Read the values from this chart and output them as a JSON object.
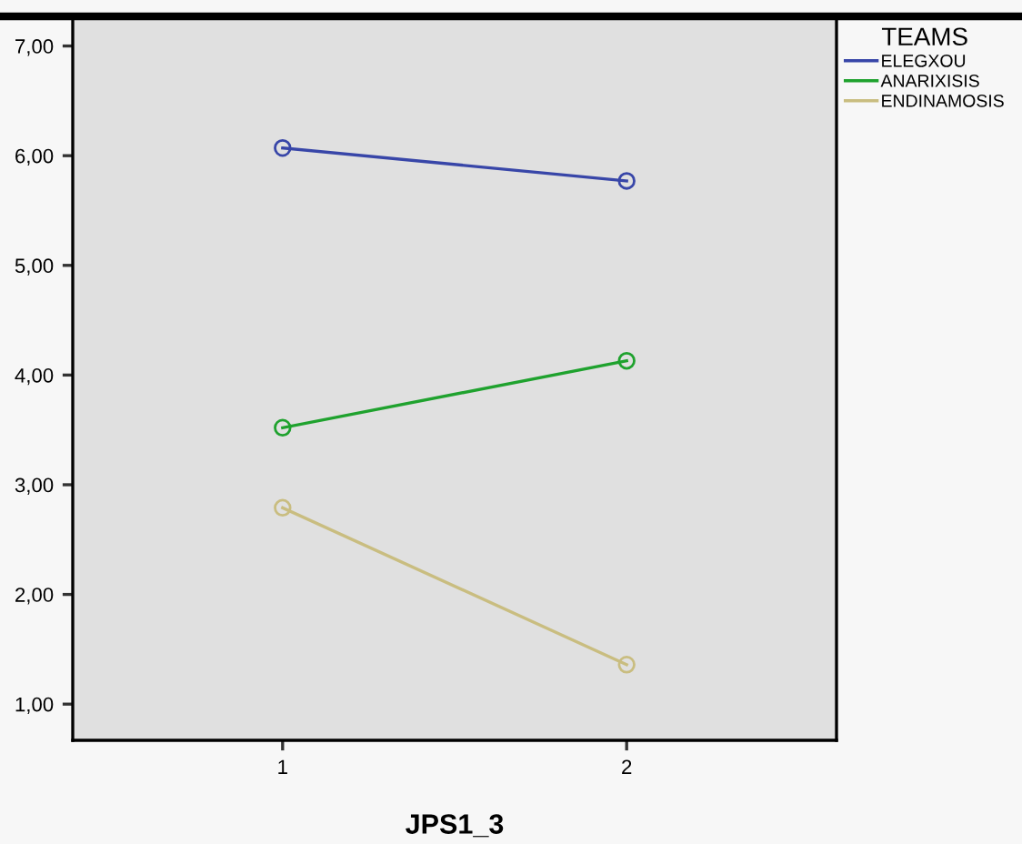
{
  "chart_data": {
    "type": "line",
    "xlabel": "JPS1_3",
    "categories": [
      "1",
      "2"
    ],
    "series": [
      {
        "name": "ELEGXOU",
        "color": "#3846a8",
        "values": [
          6.07,
          5.77
        ]
      },
      {
        "name": "ANARIXISIS",
        "color": "#1fa22e",
        "values": [
          3.52,
          4.13
        ]
      },
      {
        "name": "ENDINAMOSIS",
        "color": "#c9bd80",
        "values": [
          2.79,
          1.36
        ]
      }
    ],
    "legend_title": "TEAMS",
    "legend": "top right",
    "marker": "circle",
    "line_style": "solid",
    "grid": false,
    "ylim": [
      0.67,
      7.27
    ],
    "yticks": [
      {
        "value": 1,
        "label": "1,00"
      },
      {
        "value": 2,
        "label": "2,00"
      },
      {
        "value": 3,
        "label": "3,00"
      },
      {
        "value": 4,
        "label": "4,00"
      },
      {
        "value": 5,
        "label": "5,00"
      },
      {
        "value": 6,
        "label": "6,00"
      },
      {
        "value": 7,
        "label": "7,00"
      }
    ]
  }
}
